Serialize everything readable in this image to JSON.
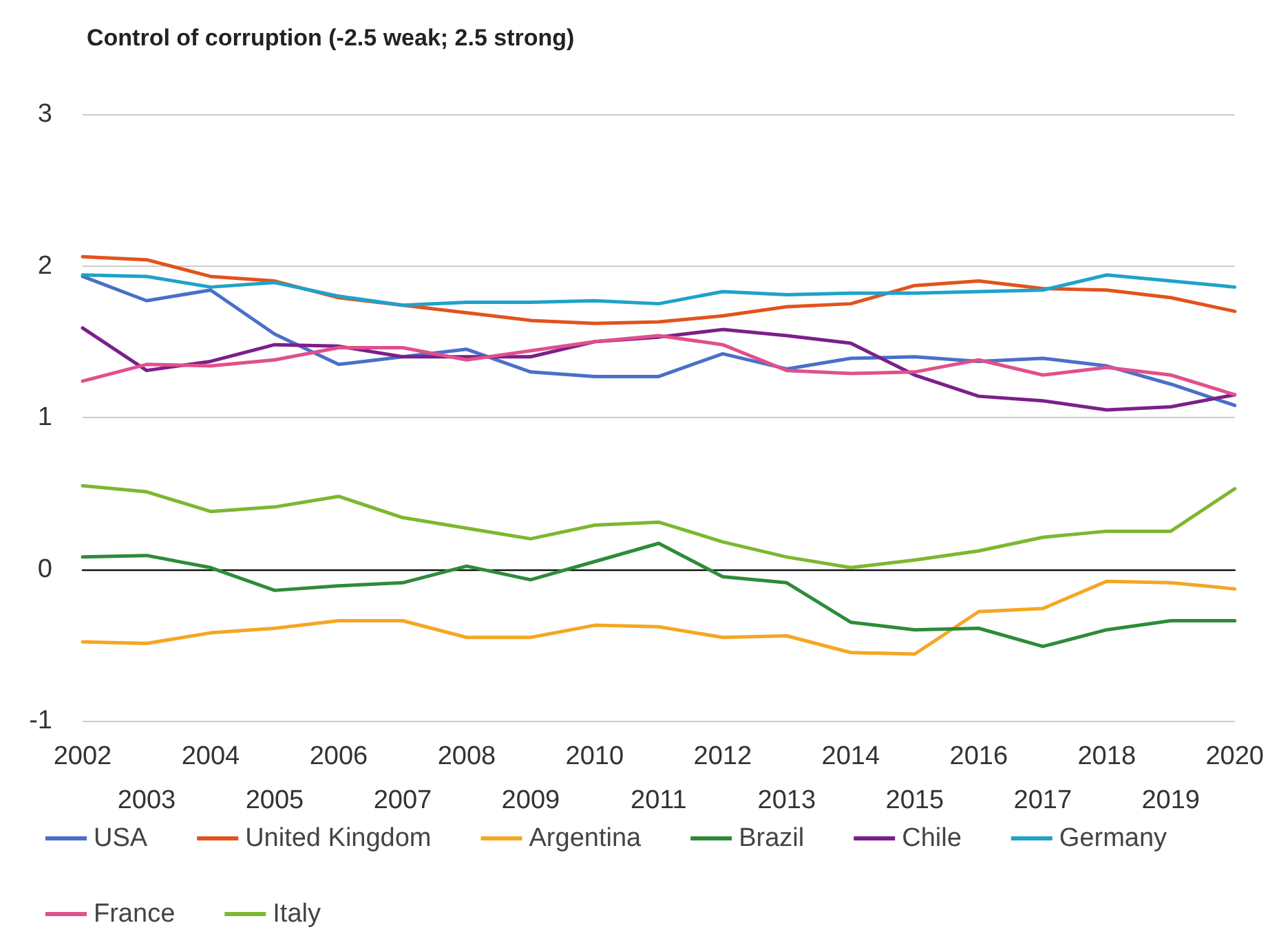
{
  "chart_data": {
    "type": "line",
    "title": "Control of corruption (-2.5 weak; 2.5 strong)",
    "categories": [
      "2002",
      "2003",
      "2004",
      "2005",
      "2006",
      "2007",
      "2008",
      "2009",
      "2010",
      "2011",
      "2012",
      "2013",
      "2014",
      "2015",
      "2016",
      "2017",
      "2018",
      "2019",
      "2020"
    ],
    "series": [
      {
        "name": "USA",
        "color": "#4a6fc9",
        "values": [
          1.93,
          1.77,
          1.84,
          1.55,
          1.35,
          1.4,
          1.45,
          1.3,
          1.27,
          1.27,
          1.42,
          1.32,
          1.39,
          1.4,
          1.37,
          1.39,
          1.34,
          1.22,
          1.08
        ]
      },
      {
        "name": "United Kingdom",
        "color": "#e2531d",
        "values": [
          2.06,
          2.04,
          1.93,
          1.9,
          1.79,
          1.74,
          1.69,
          1.64,
          1.62,
          1.63,
          1.67,
          1.73,
          1.75,
          1.87,
          1.9,
          1.85,
          1.84,
          1.79,
          1.7
        ]
      },
      {
        "name": "Argentina",
        "color": "#f5a623",
        "values": [
          -0.48,
          -0.49,
          -0.42,
          -0.39,
          -0.34,
          -0.34,
          -0.45,
          -0.45,
          -0.37,
          -0.38,
          -0.45,
          -0.44,
          -0.55,
          -0.56,
          -0.28,
          -0.26,
          -0.08,
          -0.09,
          -0.13
        ]
      },
      {
        "name": "Brazil",
        "color": "#2e8b3a",
        "values": [
          0.08,
          0.09,
          0.01,
          -0.14,
          -0.11,
          -0.09,
          0.02,
          -0.07,
          0.05,
          0.17,
          -0.05,
          -0.09,
          -0.35,
          -0.4,
          -0.39,
          -0.51,
          -0.4,
          -0.34,
          -0.34
        ]
      },
      {
        "name": "Chile",
        "color": "#7b1f8a",
        "values": [
          1.59,
          1.31,
          1.37,
          1.48,
          1.47,
          1.4,
          1.4,
          1.4,
          1.5,
          1.53,
          1.58,
          1.54,
          1.49,
          1.28,
          1.14,
          1.11,
          1.05,
          1.07,
          1.15
        ]
      },
      {
        "name": "Germany",
        "color": "#1fa2c9",
        "values": [
          1.94,
          1.93,
          1.86,
          1.89,
          1.8,
          1.74,
          1.76,
          1.76,
          1.77,
          1.75,
          1.83,
          1.81,
          1.82,
          1.82,
          1.83,
          1.84,
          1.94,
          1.9,
          1.86
        ]
      },
      {
        "name": "France",
        "color": "#e0508a",
        "values": [
          1.24,
          1.35,
          1.34,
          1.38,
          1.46,
          1.46,
          1.38,
          1.44,
          1.5,
          1.54,
          1.48,
          1.31,
          1.29,
          1.3,
          1.38,
          1.28,
          1.33,
          1.28,
          1.15
        ]
      },
      {
        "name": "Italy",
        "color": "#7cb82f",
        "values": [
          0.55,
          0.51,
          0.38,
          0.41,
          0.48,
          0.34,
          0.27,
          0.2,
          0.29,
          0.31,
          0.18,
          0.08,
          0.01,
          0.06,
          0.12,
          0.21,
          0.25,
          0.25,
          0.53
        ]
      }
    ],
    "ylim": [
      -1,
      3
    ],
    "yticks": [
      -1,
      0,
      1,
      2,
      3
    ],
    "grid": "y",
    "legend": "bottom",
    "marker": "none",
    "line_style": "solid"
  }
}
